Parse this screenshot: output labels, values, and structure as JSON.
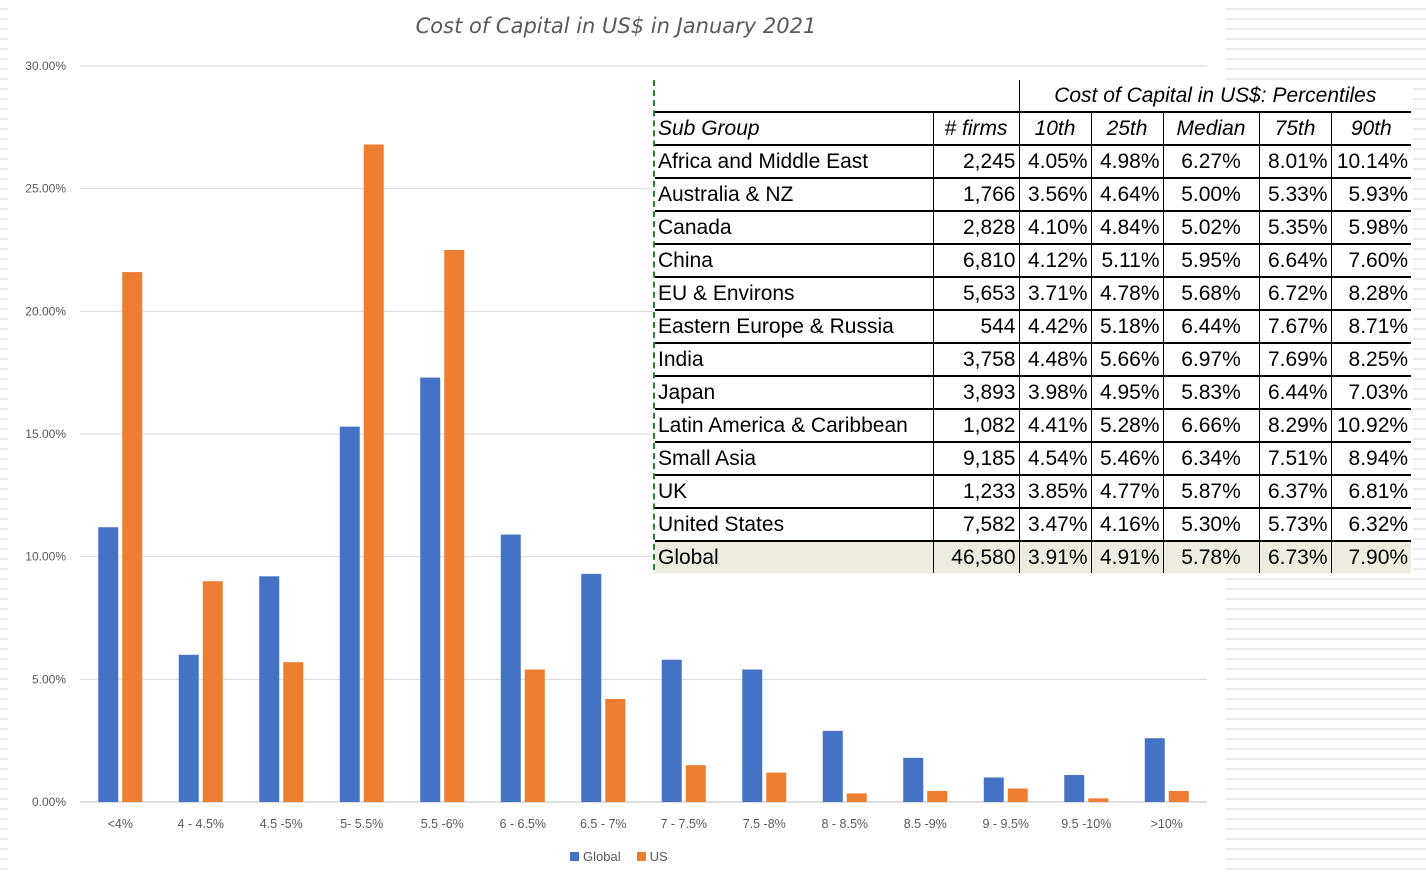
{
  "chart_data": {
    "type": "bar",
    "title": "Cost of Capital in US$ in January 2021",
    "categories": [
      "<4%",
      "4 - 4.5%",
      "4.5 -5%",
      "5- 5.5%",
      "5.5 -6%",
      "6 - 6.5%",
      "6.5 - 7%",
      "7 - 7.5%",
      "7.5 -8%",
      "8 - 8.5%",
      "8.5 -9%",
      "9 - 9.5%",
      "9.5 -10%",
      ">10%"
    ],
    "series": [
      {
        "name": "Global",
        "color": "#4472c4",
        "values": [
          11.2,
          6.0,
          9.2,
          15.3,
          17.3,
          10.9,
          9.3,
          5.8,
          5.4,
          2.9,
          1.8,
          1.0,
          1.1,
          2.6
        ]
      },
      {
        "name": "US",
        "color": "#ed7d31",
        "values": [
          21.6,
          9.0,
          5.7,
          26.8,
          22.5,
          5.4,
          4.2,
          1.5,
          1.2,
          0.35,
          0.45,
          0.55,
          0.15,
          0.45
        ]
      }
    ],
    "yticks": [
      "0.00%",
      "5.00%",
      "10.00%",
      "15.00%",
      "20.00%",
      "25.00%",
      "30.00%"
    ],
    "ylim": [
      0,
      30
    ],
    "grid": true,
    "legend_position": "bottom"
  },
  "table": {
    "group_header": "Cost of Capital in US$: Percentiles",
    "columns": [
      "Sub Group",
      "# firms",
      "10th",
      "25th",
      "Median",
      "75th",
      "90th"
    ],
    "rows": [
      [
        "Africa and Middle East",
        "2,245",
        "4.05%",
        "4.98%",
        "6.27%",
        "8.01%",
        "10.14%"
      ],
      [
        "Australia & NZ",
        "1,766",
        "3.56%",
        "4.64%",
        "5.00%",
        "5.33%",
        "5.93%"
      ],
      [
        "Canada",
        "2,828",
        "4.10%",
        "4.84%",
        "5.02%",
        "5.35%",
        "5.98%"
      ],
      [
        "China",
        "6,810",
        "4.12%",
        "5.11%",
        "5.95%",
        "6.64%",
        "7.60%"
      ],
      [
        "EU & Environs",
        "5,653",
        "3.71%",
        "4.78%",
        "5.68%",
        "6.72%",
        "8.28%"
      ],
      [
        "Eastern Europe & Russia",
        "544",
        "4.42%",
        "5.18%",
        "6.44%",
        "7.67%",
        "8.71%"
      ],
      [
        "India",
        "3,758",
        "4.48%",
        "5.66%",
        "6.97%",
        "7.69%",
        "8.25%"
      ],
      [
        "Japan",
        "3,893",
        "3.98%",
        "4.95%",
        "5.83%",
        "6.44%",
        "7.03%"
      ],
      [
        "Latin America & Caribbean",
        "1,082",
        "4.41%",
        "5.28%",
        "6.66%",
        "8.29%",
        "10.92%"
      ],
      [
        "Small Asia",
        "9,185",
        "4.54%",
        "5.46%",
        "6.34%",
        "7.51%",
        "8.94%"
      ],
      [
        "UK",
        "1,233",
        "3.85%",
        "4.77%",
        "5.87%",
        "6.37%",
        "6.81%"
      ],
      [
        "United States",
        "7,582",
        "3.47%",
        "4.16%",
        "5.30%",
        "5.73%",
        "6.32%"
      ],
      [
        "Global",
        "46,580",
        "3.91%",
        "4.91%",
        "5.78%",
        "6.73%",
        "7.90%"
      ]
    ]
  }
}
